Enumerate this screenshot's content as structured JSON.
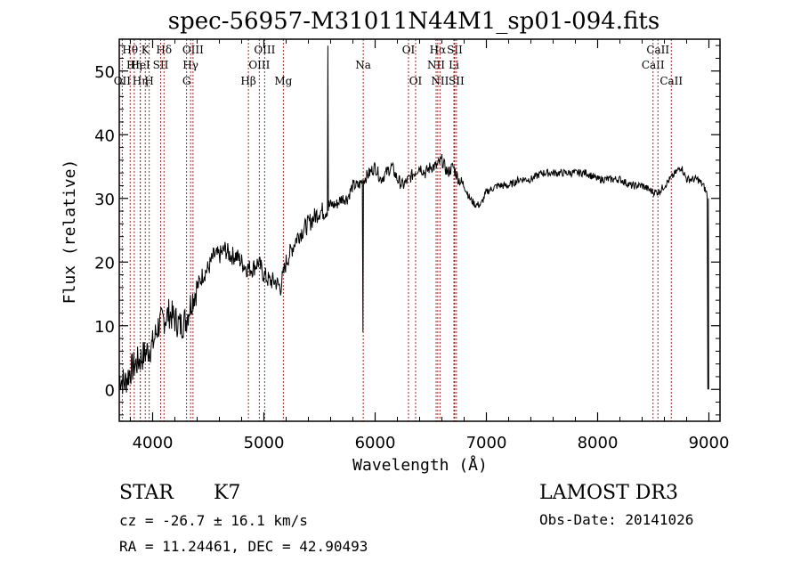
{
  "chart_data": {
    "type": "line",
    "title": "spec-56957-M31011N44M1_sp01-094.fits",
    "xlabel": "Wavelength (Å)",
    "ylabel": "Flux (relative)",
    "xlim": [
      3700,
      9100
    ],
    "ylim": [
      -5,
      55
    ],
    "xticks": [
      4000,
      5000,
      6000,
      7000,
      8000,
      9000
    ],
    "yticks": [
      0,
      10,
      20,
      30,
      40,
      50
    ],
    "grid": false,
    "spectrum": {
      "name": "flux",
      "x": [
        3700,
        3750,
        3800,
        3850,
        3900,
        3950,
        4000,
        4050,
        4100,
        4150,
        4200,
        4250,
        4300,
        4350,
        4400,
        4450,
        4500,
        4550,
        4600,
        4650,
        4700,
        4750,
        4800,
        4850,
        4900,
        4950,
        5000,
        5050,
        5100,
        5150,
        5200,
        5250,
        5300,
        5350,
        5400,
        5450,
        5500,
        5550,
        5600,
        5650,
        5700,
        5750,
        5800,
        5850,
        5900,
        5950,
        6000,
        6050,
        6100,
        6150,
        6200,
        6250,
        6300,
        6350,
        6400,
        6450,
        6500,
        6550,
        6600,
        6650,
        6700,
        6750,
        6800,
        6850,
        6900,
        6950,
        7000,
        7100,
        7200,
        7300,
        7400,
        7500,
        7600,
        7700,
        7800,
        7900,
        8000,
        8100,
        8200,
        8300,
        8400,
        8500,
        8550,
        8600,
        8650,
        8700,
        8750,
        8800,
        8850,
        8900,
        8950,
        9000
      ],
      "y": [
        2,
        1,
        3,
        4,
        5,
        6,
        7,
        10,
        11,
        12,
        11,
        10,
        11,
        14,
        16,
        18,
        19,
        21,
        21,
        22,
        21,
        21,
        20,
        19,
        19,
        20,
        18,
        17,
        17,
        16,
        20,
        22,
        24,
        25,
        26,
        27,
        28,
        28,
        29,
        29,
        30,
        30,
        32,
        32,
        33,
        34,
        35,
        33,
        34,
        35,
        33,
        32,
        33,
        34,
        35,
        34,
        35,
        35,
        36,
        34,
        35,
        33,
        32,
        30,
        29,
        29,
        31,
        32,
        32,
        33,
        33,
        34,
        34,
        34,
        34,
        34,
        33,
        33,
        33,
        32,
        32,
        31,
        31,
        32,
        33,
        34,
        35,
        33,
        33,
        33,
        32,
        30
      ]
    },
    "spikes": [
      {
        "x": 5577,
        "y": 54,
        "label": "sky line peak"
      },
      {
        "x": 5892,
        "y": 9,
        "label": "Na dip"
      },
      {
        "x": 8990,
        "y": 0,
        "label": "end drop"
      }
    ],
    "lines": [
      {
        "label": "Hθ",
        "x": 3798,
        "row": 0
      },
      {
        "label": "OII",
        "x": 3727,
        "row": 2
      },
      {
        "label": "Hη",
        "x": 3835,
        "row": 1
      },
      {
        "label": "HeI",
        "x": 3889,
        "row": 1
      },
      {
        "label": "Hη",
        "x": 3889,
        "row": 2
      },
      {
        "label": "K",
        "x": 3934,
        "row": 0
      },
      {
        "label": "H",
        "x": 3969,
        "row": 2
      },
      {
        "label": "SII",
        "x": 4072,
        "row": 1
      },
      {
        "label": "Hδ",
        "x": 4102,
        "row": 0
      },
      {
        "label": "G",
        "x": 4305,
        "row": 2
      },
      {
        "label": "Hγ",
        "x": 4341,
        "row": 1
      },
      {
        "label": "OIII",
        "x": 4363,
        "row": 0
      },
      {
        "label": "Hβ",
        "x": 4861,
        "row": 2
      },
      {
        "label": "OIII",
        "x": 4959,
        "row": 1
      },
      {
        "label": "OIII",
        "x": 5007,
        "row": 0
      },
      {
        "label": "Mg",
        "x": 5175,
        "row": 2
      },
      {
        "label": "Na",
        "x": 5893,
        "row": 1
      },
      {
        "label": "OI",
        "x": 6300,
        "row": 0
      },
      {
        "label": "OI",
        "x": 6364,
        "row": 2
      },
      {
        "label": "NII",
        "x": 6548,
        "row": 1
      },
      {
        "label": "Hα",
        "x": 6563,
        "row": 0
      },
      {
        "label": "NII",
        "x": 6583,
        "row": 2
      },
      {
        "label": "Li",
        "x": 6708,
        "row": 1
      },
      {
        "label": "SII",
        "x": 6716,
        "row": 0
      },
      {
        "label": "SII",
        "x": 6731,
        "row": 2
      },
      {
        "label": "CaII",
        "x": 8498,
        "row": 1
      },
      {
        "label": "CaII",
        "x": 8542,
        "row": 0
      },
      {
        "label": "CaII",
        "x": 8662,
        "row": 2
      }
    ],
    "annotations": {
      "object_class": "STAR",
      "subclass": "K7",
      "cz_line": "cz = -26.7 ± 16.1 km/s",
      "coord_line": "RA =  11.24461, DEC =  42.90493",
      "survey": "LAMOST DR3",
      "obs_date": "Obs-Date: 20141026"
    }
  }
}
